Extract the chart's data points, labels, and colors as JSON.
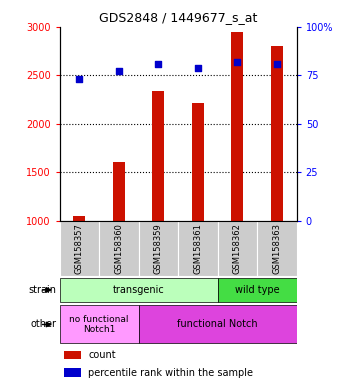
{
  "title": "GDS2848 / 1449677_s_at",
  "samples": [
    "GSM158357",
    "GSM158360",
    "GSM158359",
    "GSM158361",
    "GSM158362",
    "GSM158363"
  ],
  "counts": [
    1050,
    1610,
    2340,
    2210,
    2950,
    2800
  ],
  "percentiles": [
    73,
    77,
    81,
    79,
    82,
    81
  ],
  "ylim_left": [
    1000,
    3000
  ],
  "ylim_right": [
    0,
    100
  ],
  "bar_color": "#cc1100",
  "dot_color": "#0000cc",
  "bar_width": 0.3,
  "left_yticks": [
    1000,
    1500,
    2000,
    2500,
    3000
  ],
  "right_yticks": [
    0,
    25,
    50,
    75,
    100
  ],
  "dotted_lines": [
    1500,
    2000,
    2500
  ],
  "strain_transgenic_color": "#bbffbb",
  "strain_wildtype_color": "#44dd44",
  "other_nofunc_color": "#ff99ff",
  "other_func_color": "#dd44dd",
  "legend_count_label": "count",
  "legend_pct_label": "percentile rank within the sample",
  "tick_bg": "#cccccc",
  "figwidth": 3.41,
  "figheight": 3.84,
  "dpi": 100
}
